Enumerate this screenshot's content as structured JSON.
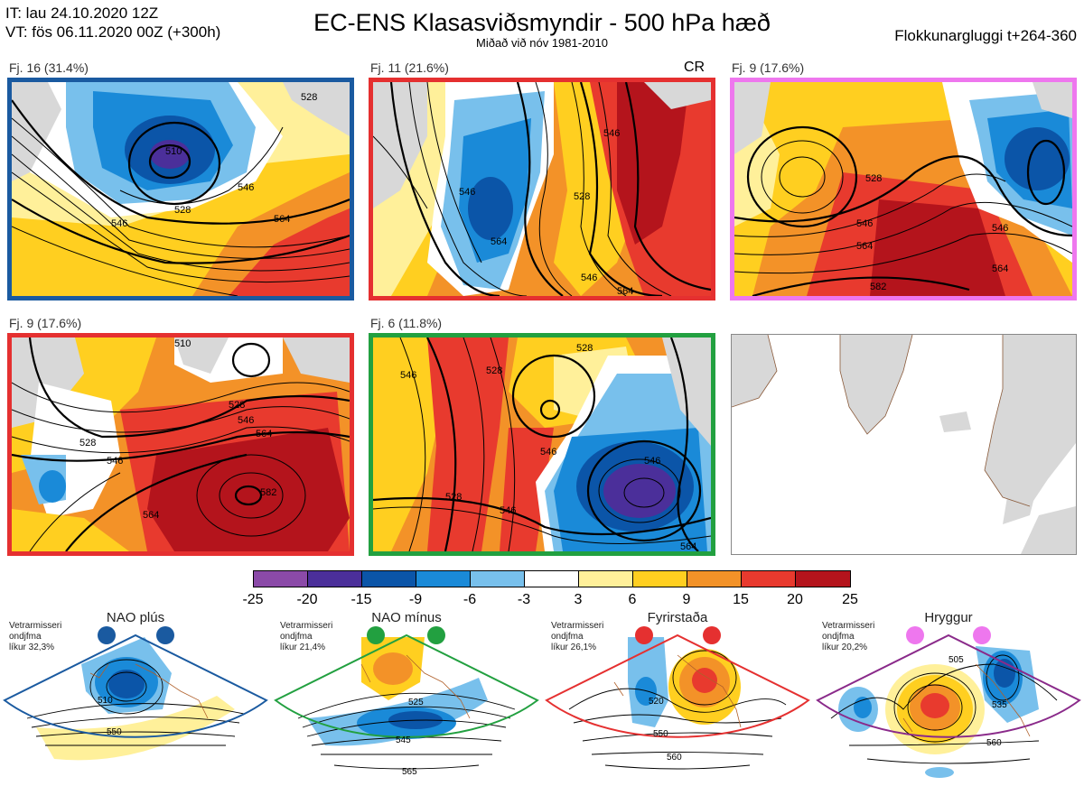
{
  "header": {
    "it_line": "IT: lau 24.10.2020 12Z",
    "vt_line": "VT: fös 06.11.2020 00Z  (+300h)",
    "title": "EC-ENS Klasasviðsmyndir - 500 hPa hæð",
    "subtitle": "Miðað við nóv 1981-2010",
    "window": "Flokkunargluggi t+264-360"
  },
  "panels": [
    {
      "label": "Fj. 16 (31.4%)",
      "border_color": "#1a5aa0",
      "extra": "",
      "contours": [
        "510",
        "528",
        "546",
        "546",
        "564",
        "528"
      ]
    },
    {
      "label": "Fj. 11 (21.6%)",
      "border_color": "#e53030",
      "extra": "CR",
      "contours": [
        "546",
        "564",
        "528",
        "546",
        "546",
        "564"
      ]
    },
    {
      "label": "Fj. 9 (17.6%)",
      "border_color": "#ee77ee",
      "extra": "",
      "contours": [
        "528",
        "546",
        "546",
        "564",
        "564",
        "582"
      ]
    },
    {
      "label": "Fj. 9 (17.6%)",
      "border_color": "#e53030",
      "extra": "",
      "contours": [
        "510",
        "528",
        "546",
        "564",
        "528",
        "546",
        "564",
        "582"
      ]
    },
    {
      "label": "Fj. 6 (11.8%)",
      "border_color": "#22a040",
      "extra": "",
      "contours": [
        "528",
        "528",
        "546",
        "546",
        "546",
        "564",
        "528",
        "546"
      ]
    }
  ],
  "colorbar": {
    "ticks": [
      "-25",
      "-20",
      "-15",
      "-9",
      "-6",
      "-3",
      "3",
      "6",
      "9",
      "15",
      "20",
      "25"
    ],
    "colors": [
      "#8b4aa8",
      "#4b2f9a",
      "#0b55a8",
      "#1a8ad8",
      "#78c0ec",
      "#ffffff",
      "#fff09a",
      "#ffcf20",
      "#f39228",
      "#e83a2e",
      "#b4141c"
    ]
  },
  "regimes": [
    {
      "name": "NAO plús",
      "note": [
        "Vetrarmisseri",
        "ondjfma",
        "líkur 32,3%"
      ],
      "color": "#1a5aa0",
      "contours": [
        "510",
        "550"
      ]
    },
    {
      "name": "NAO mínus",
      "note": [
        "Vetrarmisseri",
        "ondjfma",
        "líkur 21,4%"
      ],
      "color": "#22a040",
      "contours": [
        "525",
        "545",
        "565"
      ]
    },
    {
      "name": "Fyrirstaða",
      "note": [
        "Vetrarmisseri",
        "ondjfma",
        "líkur 26,1%"
      ],
      "color": "#e53030",
      "contours": [
        "520",
        "550",
        "560"
      ]
    },
    {
      "name": "Hryggur",
      "note": [
        "Vetrarmisseri",
        "ondjfma",
        "líkur 20,2%"
      ],
      "color": "#ee77ee",
      "contours": [
        "505",
        "535",
        "560"
      ]
    }
  ]
}
